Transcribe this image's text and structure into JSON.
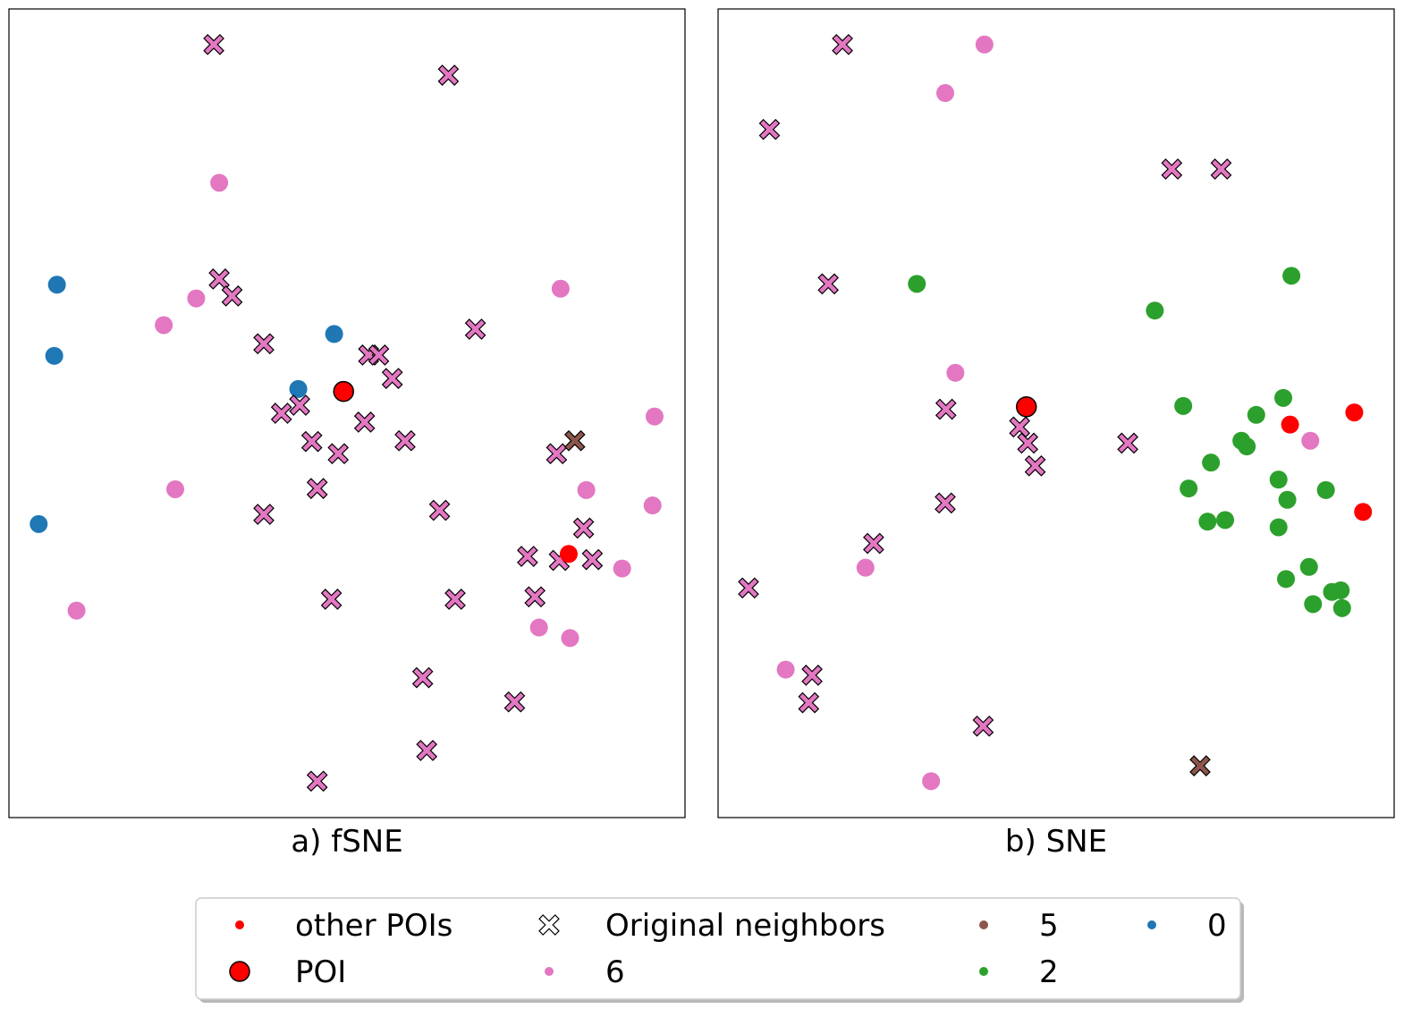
{
  "colors": {
    "class_6": "#e377c2",
    "class_5": "#8c564b",
    "class_2": "#2ca02c",
    "class_0": "#1f77b4",
    "poi": "#ff0000"
  },
  "legend": {
    "items": [
      {
        "key": "other_pois",
        "label": "other POIs",
        "marker": "small-dot",
        "color": "#ff0000"
      },
      {
        "key": "poi",
        "label": "POI",
        "marker": "big-dot",
        "color": "#ff0000"
      },
      {
        "key": "orig",
        "label": "Original neighbors",
        "marker": "x-hollow",
        "color": "#ffffff"
      },
      {
        "key": "c6",
        "label": "6",
        "marker": "small-dot",
        "color": "#e377c2"
      },
      {
        "key": "c5",
        "label": "5",
        "marker": "small-dot",
        "color": "#8c564b"
      },
      {
        "key": "c2",
        "label": "2",
        "marker": "small-dot",
        "color": "#2ca02c"
      },
      {
        "key": "c0",
        "label": "0",
        "marker": "small-dot",
        "color": "#1f77b4"
      }
    ]
  },
  "chart_data": [
    {
      "type": "scatter",
      "caption": "a) fSNE",
      "xlim": [
        0,
        100
      ],
      "ylim": [
        0,
        100
      ],
      "grid": false,
      "ticks": false,
      "points": [
        {
          "x": 30.3,
          "y": 95.6,
          "cls": "6",
          "neighbor": true
        },
        {
          "x": 65.0,
          "y": 91.8,
          "cls": "6",
          "neighbor": true
        },
        {
          "x": 31.1,
          "y": 66.6,
          "cls": "6",
          "neighbor": true
        },
        {
          "x": 33.0,
          "y": 64.5,
          "cls": "6",
          "neighbor": true
        },
        {
          "x": 37.7,
          "y": 58.6,
          "cls": "6",
          "neighbor": true
        },
        {
          "x": 69.0,
          "y": 60.4,
          "cls": "6",
          "neighbor": true
        },
        {
          "x": 53.2,
          "y": 57.2,
          "cls": "6",
          "neighbor": true
        },
        {
          "x": 54.7,
          "y": 57.2,
          "cls": "6",
          "neighbor": true
        },
        {
          "x": 56.7,
          "y": 54.3,
          "cls": "6",
          "neighbor": true
        },
        {
          "x": 43.0,
          "y": 51.0,
          "cls": "6",
          "neighbor": true
        },
        {
          "x": 40.3,
          "y": 50.0,
          "cls": "6",
          "neighbor": true
        },
        {
          "x": 52.6,
          "y": 48.9,
          "cls": "6",
          "neighbor": true
        },
        {
          "x": 44.8,
          "y": 46.5,
          "cls": "6",
          "neighbor": true
        },
        {
          "x": 58.6,
          "y": 46.6,
          "cls": "6",
          "neighbor": true
        },
        {
          "x": 48.7,
          "y": 45.0,
          "cls": "6",
          "neighbor": true
        },
        {
          "x": 45.6,
          "y": 40.7,
          "cls": "6",
          "neighbor": true
        },
        {
          "x": 37.7,
          "y": 37.5,
          "cls": "6",
          "neighbor": true
        },
        {
          "x": 63.7,
          "y": 38.0,
          "cls": "6",
          "neighbor": true
        },
        {
          "x": 81.0,
          "y": 45.0,
          "cls": "6",
          "neighbor": true
        },
        {
          "x": 85.0,
          "y": 35.8,
          "cls": "6",
          "neighbor": true
        },
        {
          "x": 76.7,
          "y": 32.3,
          "cls": "6",
          "neighbor": true
        },
        {
          "x": 81.4,
          "y": 31.8,
          "cls": "6",
          "neighbor": true
        },
        {
          "x": 86.3,
          "y": 31.9,
          "cls": "6",
          "neighbor": true
        },
        {
          "x": 47.7,
          "y": 27.0,
          "cls": "6",
          "neighbor": true
        },
        {
          "x": 66.0,
          "y": 27.0,
          "cls": "6",
          "neighbor": true
        },
        {
          "x": 77.8,
          "y": 27.3,
          "cls": "6",
          "neighbor": true
        },
        {
          "x": 61.2,
          "y": 17.3,
          "cls": "6",
          "neighbor": true
        },
        {
          "x": 74.8,
          "y": 14.3,
          "cls": "6",
          "neighbor": true
        },
        {
          "x": 61.8,
          "y": 8.3,
          "cls": "6",
          "neighbor": true
        },
        {
          "x": 45.6,
          "y": 4.5,
          "cls": "6",
          "neighbor": true
        },
        {
          "x": 83.7,
          "y": 46.6,
          "cls": "5",
          "neighbor": true
        },
        {
          "x": 31.1,
          "y": 78.5,
          "cls": "6",
          "neighbor": false
        },
        {
          "x": 27.7,
          "y": 64.2,
          "cls": "6",
          "neighbor": false
        },
        {
          "x": 22.9,
          "y": 60.9,
          "cls": "6",
          "neighbor": false
        },
        {
          "x": 81.6,
          "y": 65.4,
          "cls": "6",
          "neighbor": false
        },
        {
          "x": 95.5,
          "y": 49.6,
          "cls": "6",
          "neighbor": false
        },
        {
          "x": 24.6,
          "y": 40.6,
          "cls": "6",
          "neighbor": false
        },
        {
          "x": 85.4,
          "y": 40.5,
          "cls": "6",
          "neighbor": false
        },
        {
          "x": 95.2,
          "y": 38.6,
          "cls": "6",
          "neighbor": false
        },
        {
          "x": 90.7,
          "y": 30.8,
          "cls": "6",
          "neighbor": false
        },
        {
          "x": 10.0,
          "y": 25.6,
          "cls": "6",
          "neighbor": false
        },
        {
          "x": 78.4,
          "y": 23.5,
          "cls": "6",
          "neighbor": false
        },
        {
          "x": 83.0,
          "y": 22.2,
          "cls": "6",
          "neighbor": false
        },
        {
          "x": 7.1,
          "y": 65.9,
          "cls": "0",
          "neighbor": false
        },
        {
          "x": 6.7,
          "y": 57.1,
          "cls": "0",
          "neighbor": false
        },
        {
          "x": 48.1,
          "y": 59.8,
          "cls": "0",
          "neighbor": false
        },
        {
          "x": 42.8,
          "y": 53.0,
          "cls": "0",
          "neighbor": false
        },
        {
          "x": 4.4,
          "y": 36.3,
          "cls": "0",
          "neighbor": false
        },
        {
          "x": 82.8,
          "y": 32.6,
          "cls": "other_poi",
          "neighbor": false
        },
        {
          "x": 49.5,
          "y": 52.7,
          "cls": "poi",
          "neighbor": false
        }
      ]
    },
    {
      "type": "scatter",
      "caption": "b) SNE",
      "xlim": [
        0,
        100
      ],
      "ylim": [
        0,
        100
      ],
      "grid": false,
      "ticks": false,
      "points": [
        {
          "x": 18.4,
          "y": 95.6,
          "cls": "6",
          "neighbor": true
        },
        {
          "x": 7.6,
          "y": 85.1,
          "cls": "6",
          "neighbor": true
        },
        {
          "x": 67.1,
          "y": 80.2,
          "cls": "6",
          "neighbor": true
        },
        {
          "x": 74.4,
          "y": 80.2,
          "cls": "6",
          "neighbor": true
        },
        {
          "x": 16.3,
          "y": 66.0,
          "cls": "6",
          "neighbor": true
        },
        {
          "x": 33.7,
          "y": 50.5,
          "cls": "6",
          "neighbor": true
        },
        {
          "x": 44.6,
          "y": 48.3,
          "cls": "6",
          "neighbor": true
        },
        {
          "x": 45.8,
          "y": 46.3,
          "cls": "6",
          "neighbor": true
        },
        {
          "x": 46.9,
          "y": 43.5,
          "cls": "6",
          "neighbor": true
        },
        {
          "x": 60.6,
          "y": 46.3,
          "cls": "6",
          "neighbor": true
        },
        {
          "x": 33.6,
          "y": 38.9,
          "cls": "6",
          "neighbor": true
        },
        {
          "x": 23.0,
          "y": 33.9,
          "cls": "6",
          "neighbor": true
        },
        {
          "x": 4.5,
          "y": 28.4,
          "cls": "6",
          "neighbor": true
        },
        {
          "x": 13.9,
          "y": 17.6,
          "cls": "6",
          "neighbor": true
        },
        {
          "x": 13.4,
          "y": 14.2,
          "cls": "6",
          "neighbor": true
        },
        {
          "x": 39.2,
          "y": 11.3,
          "cls": "6",
          "neighbor": true
        },
        {
          "x": 71.3,
          "y": 6.4,
          "cls": "5",
          "neighbor": true
        },
        {
          "x": 39.4,
          "y": 95.6,
          "cls": "6",
          "neighbor": false
        },
        {
          "x": 33.6,
          "y": 89.6,
          "cls": "6",
          "neighbor": false
        },
        {
          "x": 35.1,
          "y": 55.0,
          "cls": "6",
          "neighbor": false
        },
        {
          "x": 87.6,
          "y": 46.6,
          "cls": "6",
          "neighbor": false
        },
        {
          "x": 21.8,
          "y": 30.9,
          "cls": "6",
          "neighbor": false
        },
        {
          "x": 10.0,
          "y": 18.3,
          "cls": "6",
          "neighbor": false
        },
        {
          "x": 31.5,
          "y": 4.5,
          "cls": "6",
          "neighbor": false
        },
        {
          "x": 29.4,
          "y": 66.0,
          "cls": "2",
          "neighbor": false
        },
        {
          "x": 84.8,
          "y": 67.0,
          "cls": "2",
          "neighbor": false
        },
        {
          "x": 64.6,
          "y": 62.7,
          "cls": "2",
          "neighbor": false
        },
        {
          "x": 83.6,
          "y": 51.9,
          "cls": "2",
          "neighbor": false
        },
        {
          "x": 68.8,
          "y": 50.9,
          "cls": "2",
          "neighbor": false
        },
        {
          "x": 79.6,
          "y": 49.8,
          "cls": "2",
          "neighbor": false
        },
        {
          "x": 77.4,
          "y": 46.6,
          "cls": "2",
          "neighbor": false
        },
        {
          "x": 78.2,
          "y": 45.9,
          "cls": "2",
          "neighbor": false
        },
        {
          "x": 72.9,
          "y": 43.9,
          "cls": "2",
          "neighbor": false
        },
        {
          "x": 69.6,
          "y": 40.7,
          "cls": "2",
          "neighbor": false
        },
        {
          "x": 82.9,
          "y": 41.8,
          "cls": "2",
          "neighbor": false
        },
        {
          "x": 89.9,
          "y": 40.5,
          "cls": "2",
          "neighbor": false
        },
        {
          "x": 84.2,
          "y": 39.3,
          "cls": "2",
          "neighbor": false
        },
        {
          "x": 72.4,
          "y": 36.6,
          "cls": "2",
          "neighbor": false
        },
        {
          "x": 75.0,
          "y": 36.8,
          "cls": "2",
          "neighbor": false
        },
        {
          "x": 82.9,
          "y": 35.9,
          "cls": "2",
          "neighbor": false
        },
        {
          "x": 87.4,
          "y": 31.0,
          "cls": "2",
          "neighbor": false
        },
        {
          "x": 84.0,
          "y": 29.5,
          "cls": "2",
          "neighbor": false
        },
        {
          "x": 90.8,
          "y": 27.9,
          "cls": "2",
          "neighbor": false
        },
        {
          "x": 92.1,
          "y": 28.1,
          "cls": "2",
          "neighbor": false
        },
        {
          "x": 88.0,
          "y": 26.4,
          "cls": "2",
          "neighbor": false
        },
        {
          "x": 92.3,
          "y": 25.9,
          "cls": "2",
          "neighbor": false
        },
        {
          "x": 84.6,
          "y": 48.6,
          "cls": "other_poi",
          "neighbor": false
        },
        {
          "x": 94.1,
          "y": 50.1,
          "cls": "other_poi",
          "neighbor": false
        },
        {
          "x": 95.4,
          "y": 37.8,
          "cls": "other_poi",
          "neighbor": false
        },
        {
          "x": 45.6,
          "y": 50.8,
          "cls": "poi",
          "neighbor": false
        }
      ]
    }
  ]
}
